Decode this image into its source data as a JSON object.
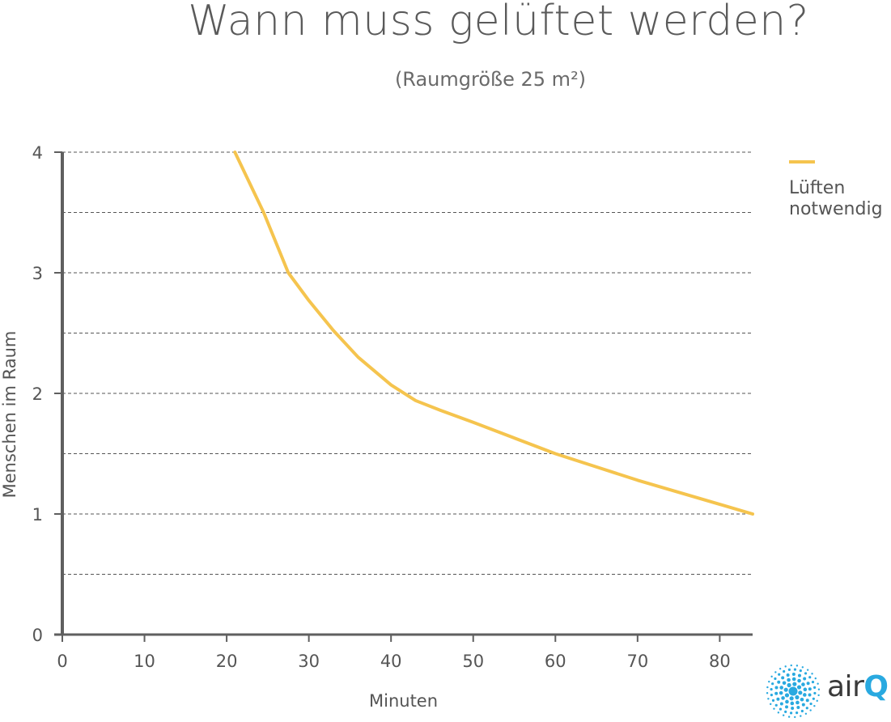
{
  "chart_data": {
    "type": "line",
    "title": "Wann muss gelüftet werden?",
    "subtitle": "(Raumgröße 25 m²)",
    "xlabel": "Minuten",
    "ylabel": "Menschen im Raum",
    "xlim": [
      0,
      84
    ],
    "ylim": [
      0,
      4
    ],
    "x_ticks": [
      0,
      10,
      20,
      30,
      40,
      50,
      60,
      70,
      80
    ],
    "y_ticks": [
      0,
      1,
      2,
      3,
      4
    ],
    "y_grid": [
      0.5,
      1,
      1.5,
      2,
      2.5,
      3,
      3.5,
      4
    ],
    "grid": "horizontal dashed",
    "legend_position": "right",
    "series": [
      {
        "name": "Lüften notwendig",
        "color": "#f5c44e",
        "x": [
          21,
          24.5,
          27.5,
          30,
          33,
          36,
          40,
          43,
          46,
          50,
          55,
          60,
          65,
          70,
          75,
          80,
          84
        ],
        "y": [
          4,
          3.5,
          3,
          2.77,
          2.52,
          2.3,
          2.07,
          1.94,
          1.86,
          1.76,
          1.63,
          1.5,
          1.39,
          1.28,
          1.18,
          1.08,
          1.0
        ]
      }
    ]
  },
  "legend": {
    "label": "Lüften notwendig",
    "color": "#f5c44e"
  },
  "logo": {
    "text_prefix": "air",
    "text_suffix": "Q",
    "dot_color": "#29a9e0"
  },
  "colors": {
    "axis": "#5f5f5f",
    "grid": "#555555",
    "text": "#555555"
  }
}
